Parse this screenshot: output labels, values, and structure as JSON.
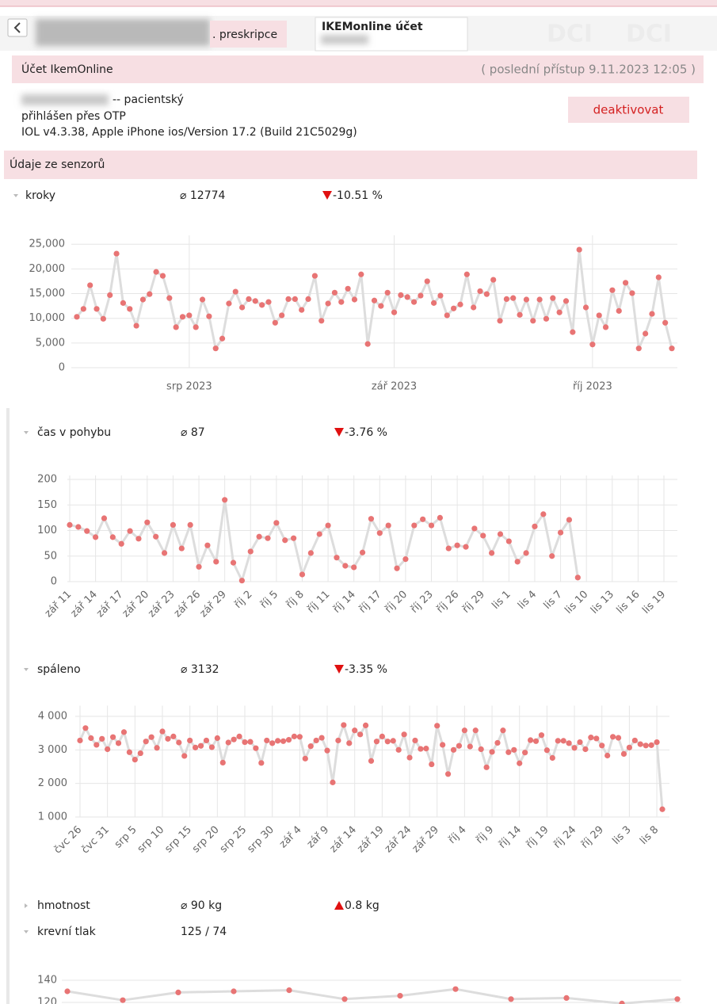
{
  "tabs": [
    ". preskripce"
  ],
  "active_tab": "IKEMonline účet",
  "account": {
    "title": "Účet IkemOnline",
    "last_access": "( poslední přístup 9.11.2023 12:05 )",
    "role": "-- pacientský",
    "login": "přihlášen přes OTP",
    "client": "IOL v4.3.38, Apple iPhone ios/Version 17.2 (Build 21C5029g)",
    "button": "deaktivovat"
  },
  "sensors": {
    "title": "Údaje ze senzorů",
    "metrics": [
      {
        "name": "kroky",
        "average": "⌀ 12774",
        "change": "-10.51 %",
        "trend": "down",
        "expanded": true
      },
      {
        "name": "čas v pohybu",
        "average": "⌀ 87",
        "change": "-3.76 %",
        "trend": "down",
        "expanded": true
      },
      {
        "name": "spáleno",
        "average": "⌀ 3132",
        "change": "-3.35 %",
        "trend": "down",
        "expanded": true
      },
      {
        "name": "hmotnost",
        "average": "⌀ 90 kg",
        "change": "0.8 kg",
        "trend": "up",
        "expanded": false
      },
      {
        "name": "krevní tlak",
        "value": "125 / 74",
        "expanded": true
      }
    ]
  },
  "chart_data": [
    {
      "type": "line",
      "color": "#e87474",
      "line_color": "#dddddd",
      "grid": true,
      "ylim": [
        0,
        26000
      ],
      "yticks": [
        0,
        {
          "value": 5000,
          "label": "5,000"
        },
        {
          "value": 10000,
          "label": "10,000"
        },
        {
          "value": 15000,
          "label": "15,000"
        },
        {
          "value": 20000,
          "label": "20,000"
        },
        {
          "value": 25000,
          "label": "25,000"
        }
      ],
      "categories": [
        null,
        null,
        null,
        null,
        null,
        null,
        null,
        null,
        null,
        null,
        null,
        null,
        null,
        null,
        null,
        null,
        null,
        "srp 2023",
        null,
        null,
        null,
        null,
        null,
        null,
        null,
        null,
        null,
        null,
        null,
        null,
        null,
        null,
        null,
        null,
        null,
        null,
        null,
        null,
        null,
        null,
        null,
        null,
        null,
        null,
        null,
        null,
        null,
        null,
        "zář 2023",
        null,
        null,
        null,
        null,
        null,
        null,
        null,
        null,
        null,
        null,
        null,
        null,
        null,
        null,
        null,
        null,
        null,
        null,
        null,
        null,
        null,
        null,
        null,
        null,
        null,
        null,
        null,
        null,
        null,
        "říj 2023",
        null,
        null,
        null,
        null,
        null,
        null,
        null,
        null,
        null,
        null,
        null,
        null
      ],
      "values": [
        10300,
        11900,
        16700,
        11900,
        9900,
        14700,
        23100,
        13100,
        11900,
        8500,
        13800,
        14900,
        19400,
        18600,
        14100,
        8200,
        10300,
        10600,
        8200,
        13800,
        10400,
        3900,
        5900,
        13000,
        15400,
        12200,
        13900,
        13500,
        12700,
        13300,
        9100,
        10600,
        13900,
        13900,
        11700,
        13900,
        18600,
        9500,
        13000,
        15200,
        13300,
        16000,
        13800,
        18900,
        4800,
        13600,
        12500,
        15200,
        11200,
        14700,
        14300,
        13300,
        14600,
        17500,
        13100,
        14600,
        10600,
        12000,
        12800,
        18900,
        12200,
        15500,
        14900,
        17800,
        9500,
        13900,
        14100,
        10700,
        13800,
        9500,
        13800,
        9900,
        14100,
        11200,
        13500,
        7200,
        23900,
        12200,
        4700,
        10600,
        8200,
        15700,
        11500,
        17200,
        15100,
        3900,
        6900,
        10900,
        18300,
        9100,
        3900
      ]
    },
    {
      "type": "line",
      "color": "#e87474",
      "line_color": "#dddddd",
      "grid": true,
      "ylim": [
        0,
        200
      ],
      "yticks": [
        0,
        50,
        100,
        150,
        200
      ],
      "categories": [
        "zář 11",
        null,
        null,
        "zář 14",
        null,
        null,
        "zář 17",
        null,
        null,
        "zář 20",
        null,
        null,
        "zář 23",
        null,
        null,
        "zář 26",
        null,
        null,
        "zář 29",
        null,
        null,
        "říj 2",
        null,
        null,
        "říj 5",
        null,
        null,
        "říj 8",
        null,
        null,
        "říj 11",
        null,
        null,
        "říj 14",
        null,
        null,
        "říj 17",
        null,
        null,
        "říj 20",
        null,
        null,
        "říj 23",
        null,
        null,
        "říj 26",
        null,
        null,
        "říj 29",
        null,
        null,
        "lis 1",
        null,
        null,
        "lis 4",
        null,
        null,
        "lis 7",
        null,
        null,
        "lis 10",
        null,
        null,
        "lis 13",
        null,
        null,
        "lis 16",
        null,
        null,
        "lis 19"
      ],
      "values": [
        111,
        107,
        99,
        87,
        124,
        87,
        74,
        99,
        84,
        116,
        88,
        56,
        111,
        65,
        111,
        29,
        71,
        39,
        160,
        37,
        2,
        59,
        88,
        85,
        115,
        81,
        85,
        14,
        56,
        93,
        110,
        47,
        31,
        28,
        57,
        123,
        95,
        110,
        26,
        44,
        110,
        122,
        110,
        125,
        65,
        71,
        68,
        104,
        90,
        56,
        93,
        79,
        39,
        56,
        108,
        132,
        50,
        96,
        121,
        8,
        null,
        null,
        null,
        null,
        null,
        null,
        null,
        null,
        null,
        null
      ]
    },
    {
      "type": "line",
      "color": "#e87474",
      "line_color": "#dddddd",
      "grid": true,
      "ylim": [
        1000,
        4200
      ],
      "yticks": [
        {
          "value": 1000,
          "label": "1 000"
        },
        {
          "value": 2000,
          "label": "2 000"
        },
        {
          "value": 3000,
          "label": "3 000"
        },
        {
          "value": 4000,
          "label": "4 000"
        }
      ],
      "categories": [
        "čvc 26",
        null,
        null,
        null,
        null,
        "čvc 31",
        null,
        null,
        null,
        null,
        "srp 5",
        null,
        null,
        null,
        null,
        "srp 10",
        null,
        null,
        null,
        null,
        "srp 15",
        null,
        null,
        null,
        null,
        "srp 20",
        null,
        null,
        null,
        null,
        "srp 25",
        null,
        null,
        null,
        null,
        "srp 30",
        null,
        null,
        null,
        null,
        "zář 4",
        null,
        null,
        null,
        null,
        "zář 9",
        null,
        null,
        null,
        null,
        "zář 14",
        null,
        null,
        null,
        null,
        "zář 19",
        null,
        null,
        null,
        null,
        "zář 24",
        null,
        null,
        null,
        null,
        "zář 29",
        null,
        null,
        null,
        null,
        "říj 4",
        null,
        null,
        null,
        null,
        "říj 9",
        null,
        null,
        null,
        null,
        "říj 14",
        null,
        null,
        null,
        null,
        "říj 19",
        null,
        null,
        null,
        null,
        "říj 24",
        null,
        null,
        null,
        null,
        "říj 29",
        null,
        null,
        null,
        null,
        "lis 3",
        null,
        null,
        null,
        null,
        "lis 8",
        null
      ],
      "values": [
        3280,
        3650,
        3350,
        3150,
        3330,
        3020,
        3380,
        3200,
        3530,
        2930,
        2710,
        2900,
        3250,
        3380,
        3060,
        3550,
        3330,
        3400,
        3220,
        2820,
        3280,
        3070,
        3120,
        3280,
        3080,
        3350,
        2620,
        3220,
        3310,
        3400,
        3230,
        3240,
        3050,
        2610,
        3280,
        3200,
        3270,
        3260,
        3300,
        3400,
        3390,
        2740,
        3110,
        3280,
        3360,
        2980,
        2030,
        3280,
        3740,
        3200,
        3580,
        3460,
        3730,
        2670,
        3250,
        3400,
        3250,
        3270,
        3000,
        3460,
        2770,
        3280,
        3030,
        3040,
        2570,
        3720,
        3150,
        2280,
        3000,
        3120,
        3580,
        3100,
        3580,
        3020,
        2480,
        2940,
        3210,
        3580,
        2930,
        3000,
        2600,
        2920,
        3290,
        3260,
        3440,
        2990,
        2760,
        3270,
        3270,
        3200,
        3060,
        3230,
        3020,
        3370,
        3340,
        3130,
        2830,
        3390,
        3360,
        2880,
        3070,
        3280,
        3170,
        3130,
        3140,
        3230,
        1230
      ]
    },
    {
      "type": "line",
      "color": "#e87474",
      "line_color": "#dddddd",
      "grid": true,
      "ylim": [
        60,
        145
      ],
      "yticks": [
        120,
        140
      ],
      "categories": [
        null,
        null,
        null,
        null,
        null,
        null,
        null,
        null,
        null,
        null,
        null,
        null
      ],
      "values": [
        130,
        122,
        129,
        130,
        131,
        123,
        126,
        132,
        123,
        124,
        119,
        123
      ]
    }
  ]
}
